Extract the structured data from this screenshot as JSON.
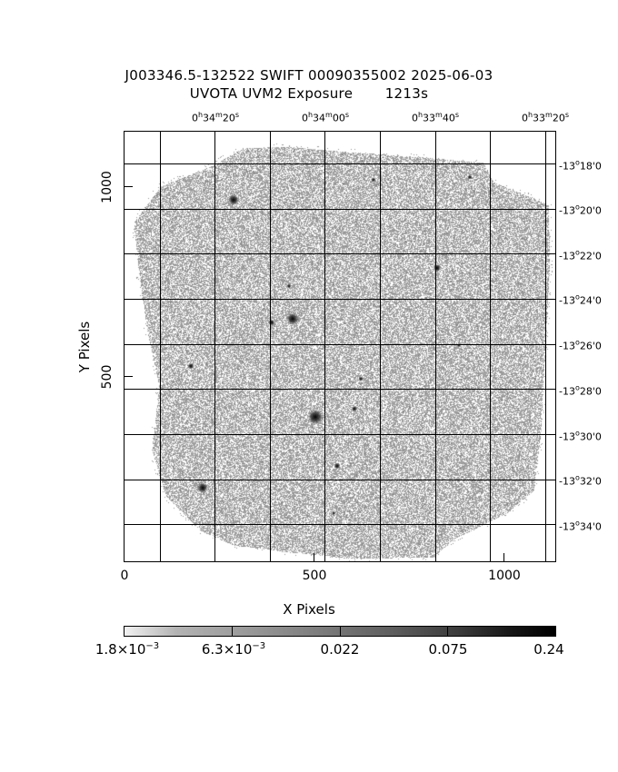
{
  "title": {
    "line1": "J003346.5-132522 SWIFT 00090355002 2025-06-03",
    "line2": "UVOTA UVM2 Exposure       1213s"
  },
  "axes": {
    "xlabel": "X Pixels",
    "ylabel": "Y Pixels",
    "x_ticks": [
      "0",
      "500",
      "1000"
    ],
    "y_ticks": [
      "500",
      "1000"
    ]
  },
  "ra_labels": [
    {
      "h": "0",
      "m": "34",
      "s": "20"
    },
    {
      "h": "0",
      "m": "34",
      "s": "00"
    },
    {
      "h": "0",
      "m": "33",
      "s": "40"
    },
    {
      "h": "0",
      "m": "33",
      "s": "20"
    }
  ],
  "dec_labels": [
    {
      "deg": "-13",
      "min": "18"
    },
    {
      "deg": "-13",
      "min": "20"
    },
    {
      "deg": "-13",
      "min": "22"
    },
    {
      "deg": "-13",
      "min": "24"
    },
    {
      "deg": "-13",
      "min": "26"
    },
    {
      "deg": "-13",
      "min": "28"
    },
    {
      "deg": "-13",
      "min": "30"
    },
    {
      "deg": "-13",
      "min": "32"
    },
    {
      "deg": "-13",
      "min": "34"
    }
  ],
  "colorbar": {
    "labels": [
      {
        "mant": "1.8×10",
        "exp": "−3"
      },
      {
        "mant": "6.3×10",
        "exp": "−3"
      },
      {
        "mant": "0.022",
        "exp": ""
      },
      {
        "mant": "0.075",
        "exp": ""
      },
      {
        "mant": "0.24",
        "exp": ""
      }
    ]
  },
  "colors": {
    "noise": "#8f8f8f",
    "grid": "#000000",
    "background": "#ffffff"
  }
}
